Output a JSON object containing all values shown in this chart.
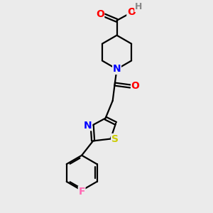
{
  "background_color": "#ebebeb",
  "bond_color": "#000000",
  "bond_width": 1.6,
  "atom_colors": {
    "O": "#ff0000",
    "N": "#0000ff",
    "S": "#cccc00",
    "F": "#ff69b4",
    "H": "#888888",
    "C": "#000000"
  },
  "font_size": 9,
  "fig_size": [
    3.0,
    3.0
  ],
  "dpi": 100
}
